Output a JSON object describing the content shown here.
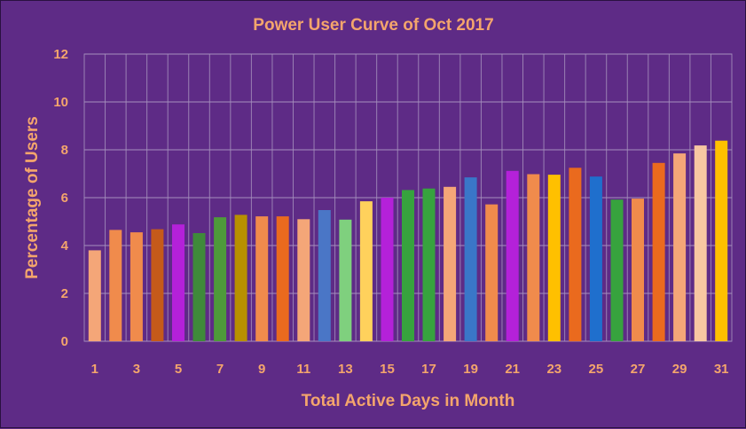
{
  "chart_data": {
    "type": "bar",
    "title": "Power User Curve of Oct 2017",
    "xlabel": "Total Active Days in Month",
    "ylabel": "Percentage of Users",
    "ylim": [
      0,
      12
    ],
    "yticks": [
      "0",
      "2",
      "4",
      "6",
      "8",
      "10",
      "12"
    ],
    "categories": [
      "1",
      "2",
      "3",
      "4",
      "5",
      "6",
      "7",
      "8",
      "9",
      "10",
      "11",
      "12",
      "13",
      "14",
      "15",
      "16",
      "17",
      "18",
      "19",
      "20",
      "21",
      "22",
      "23",
      "24",
      "25",
      "26",
      "27",
      "28",
      "29",
      "30",
      "31"
    ],
    "xtick_labels": [
      "1",
      "3",
      "5",
      "7",
      "9",
      "11",
      "13",
      "15",
      "17",
      "19",
      "21",
      "23",
      "25",
      "27",
      "29",
      "31"
    ],
    "values": [
      3.8,
      4.65,
      4.55,
      4.68,
      4.88,
      4.52,
      5.18,
      5.28,
      5.22,
      5.22,
      5.1,
      5.48,
      5.08,
      5.85,
      6.0,
      6.32,
      6.38,
      6.45,
      6.85,
      5.72,
      7.12,
      6.98,
      6.96,
      7.25,
      6.88,
      5.92,
      5.96,
      7.45,
      7.85,
      8.18,
      8.38
    ],
    "colors": [
      "#f4a678",
      "#f08b4c",
      "#f08b4c",
      "#c55a1a",
      "#b421d9",
      "#3f8a3a",
      "#4e9a3a",
      "#b89000",
      "#f08b4c",
      "#ea6a1e",
      "#f4a678",
      "#4a76c6",
      "#7fd07e",
      "#ffd15c",
      "#b421d9",
      "#37a33e",
      "#37a33e",
      "#f4a678",
      "#3a76c8",
      "#f08b4c",
      "#b421d9",
      "#f08b4c",
      "#ffc000",
      "#ea6a1e",
      "#1f6fcd",
      "#37a33e",
      "#f08b4c",
      "#ea6a1e",
      "#f4a678",
      "#f7c7a2",
      "#ffc000"
    ],
    "grid": true,
    "legend": "none"
  }
}
